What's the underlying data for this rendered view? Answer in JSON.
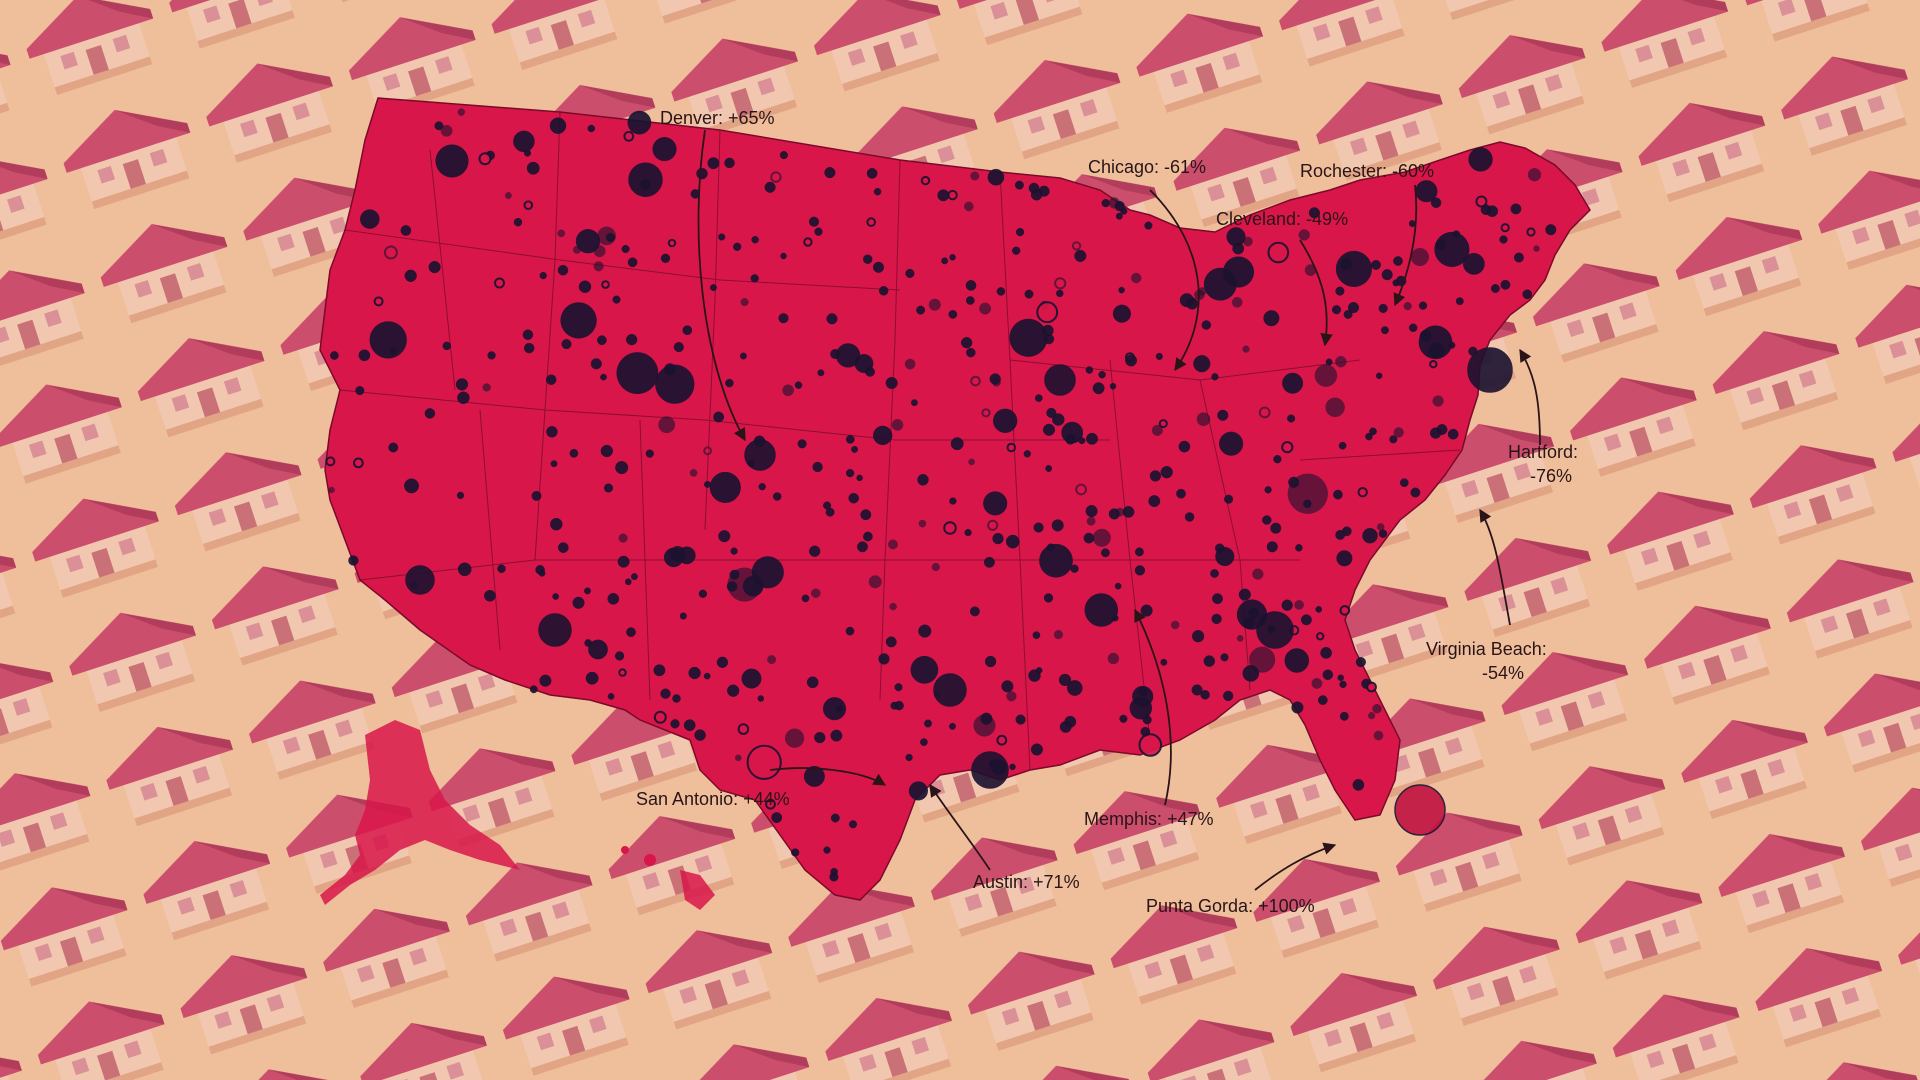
{
  "colors": {
    "background_cream": "#f3d9a8",
    "roof_pink": "#c9506e",
    "map_red": "#d8164a",
    "map_dark_red": "#b8103e",
    "dot_dark": "#1b1230",
    "label_text": "#2a1418"
  },
  "annotations": [
    {
      "id": "denver",
      "lines": [
        "Denver: +65%"
      ]
    },
    {
      "id": "chicago",
      "lines": [
        "Chicago: -61%"
      ]
    },
    {
      "id": "rochester",
      "lines": [
        "Rochester: -60%"
      ]
    },
    {
      "id": "cleveland",
      "lines": [
        "Cleveland: -49%"
      ]
    },
    {
      "id": "hartford",
      "lines": [
        "Hartford:",
        "-76%"
      ]
    },
    {
      "id": "virginia-beach",
      "lines": [
        "Virginia Beach:",
        "-54%"
      ]
    },
    {
      "id": "san-antonio",
      "lines": [
        "San Antonio: +44%"
      ]
    },
    {
      "id": "memphis",
      "lines": [
        "Memphis: +47%"
      ]
    },
    {
      "id": "austin",
      "lines": [
        "Austin: +71%"
      ]
    },
    {
      "id": "punta-gorda",
      "lines": [
        "Punta Gorda: +100%"
      ]
    }
  ]
}
